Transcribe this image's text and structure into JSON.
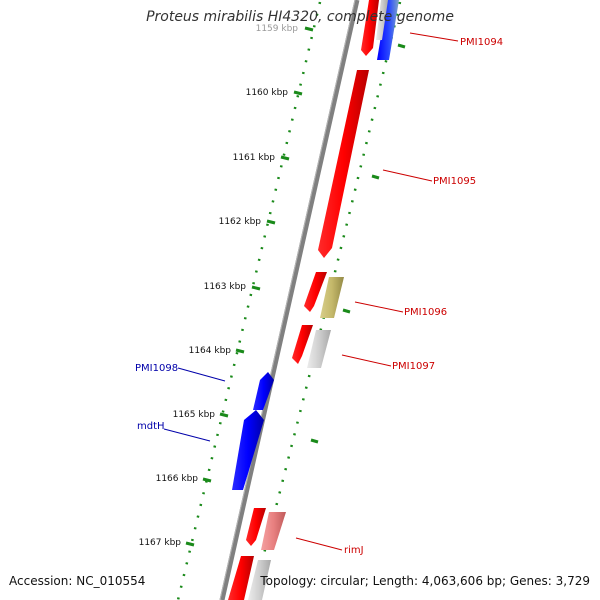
{
  "title": "Proteus mirabilis HI4320, complete genome",
  "accession": "Accession: NC_010554",
  "topology": "Topology: circular; Length: 4,063,606 bp; Genes: 3,729",
  "ticks": [
    "1159 kbp",
    "1160 kbp",
    "1161 kbp",
    "1162 kbp",
    "1163 kbp",
    "1164 kbp",
    "1165 kbp",
    "1166 kbp",
    "1167 kbp"
  ],
  "gene_labels": {
    "pmi1094": "PMI1094",
    "pmi1095": "PMI1095",
    "pmi1096": "PMI1096",
    "pmi1097": "PMI1097",
    "pmi1098": "PMI1098",
    "mdth": "mdtH",
    "rimj": "rimJ"
  },
  "colors": {
    "forward_gene": "#ff0000",
    "reverse_gene": "#0000ff",
    "tick": "#1a8a1a",
    "backbone": "#808080",
    "forward_label": "#cc0000",
    "reverse_label": "#0000aa"
  }
}
